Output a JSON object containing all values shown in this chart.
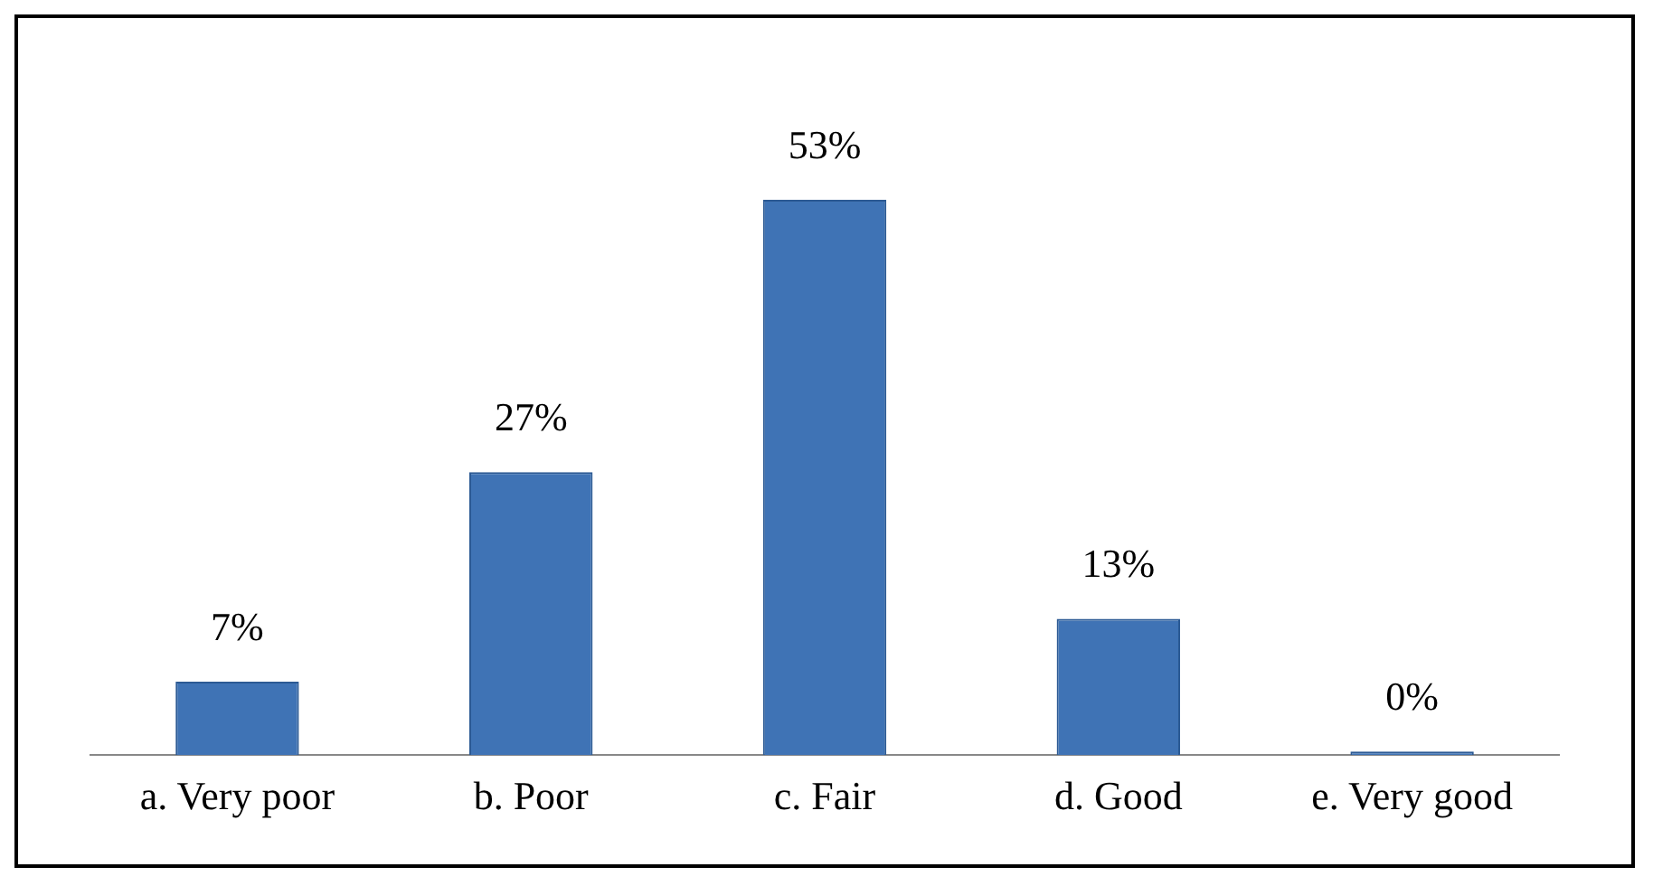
{
  "chart_data": {
    "type": "bar",
    "categories": [
      "a. Very poor",
      "b. Poor",
      "c. Fair",
      "d. Good",
      "e. Very good"
    ],
    "values": [
      7,
      27,
      53,
      13,
      0
    ],
    "color": "#3f73b5",
    "data_labels": true,
    "value_labels": [
      "7%",
      "27%",
      "53%",
      "13%",
      "0%"
    ],
    "grid": false,
    "legend": false
  }
}
